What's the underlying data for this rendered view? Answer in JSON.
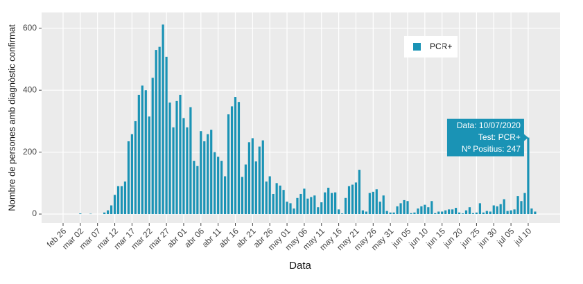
{
  "chart_data": {
    "type": "bar",
    "x_label": "Data",
    "y_label": "Nombre de persones amb diagnòstic confirmat",
    "categories": [
      "feb 26",
      null,
      null,
      null,
      null,
      "mar 02",
      null,
      null,
      null,
      null,
      "mar 07",
      null,
      null,
      null,
      null,
      "mar 12",
      null,
      null,
      null,
      null,
      "mar 17",
      null,
      null,
      null,
      null,
      "mar 22",
      null,
      null,
      null,
      null,
      "mar 27",
      null,
      null,
      null,
      null,
      "abr 01",
      null,
      null,
      null,
      null,
      "abr 06",
      null,
      null,
      null,
      null,
      "abr 11",
      null,
      null,
      null,
      null,
      "abr 16",
      null,
      null,
      null,
      null,
      "abr 21",
      null,
      null,
      null,
      null,
      "abr 26",
      null,
      null,
      null,
      null,
      "may 01",
      null,
      null,
      null,
      null,
      "may 06",
      null,
      null,
      null,
      null,
      "may 11",
      null,
      null,
      null,
      null,
      "may 16",
      null,
      null,
      null,
      null,
      "may 21",
      null,
      null,
      null,
      null,
      "may 26",
      null,
      null,
      null,
      null,
      "may 31",
      null,
      null,
      null,
      null,
      "jun 05",
      null,
      null,
      null,
      null,
      "jun 10",
      null,
      null,
      null,
      null,
      "jun 15",
      null,
      null,
      null,
      null,
      "jun 20",
      null,
      null,
      null,
      null,
      "jun 25",
      null,
      null,
      null,
      null,
      "jun 30",
      null,
      null,
      null,
      null,
      "jul 05",
      null,
      null,
      null,
      null,
      "jul 10",
      null,
      null
    ],
    "series": [
      {
        "name": "PCR+",
        "color": "#1a93b5",
        "values": [
          null,
          null,
          null,
          null,
          null,
          2,
          null,
          null,
          1,
          null,
          null,
          null,
          5,
          12,
          28,
          62,
          90,
          90,
          105,
          235,
          258,
          300,
          385,
          415,
          400,
          315,
          440,
          530,
          540,
          612,
          508,
          360,
          280,
          365,
          385,
          310,
          280,
          345,
          172,
          155,
          268,
          235,
          258,
          272,
          200,
          185,
          172,
          122,
          322,
          348,
          378,
          362,
          120,
          160,
          232,
          245,
          170,
          218,
          238,
          105,
          122,
          65,
          100,
          92,
          78,
          40,
          35,
          18,
          52,
          65,
          82,
          50,
          55,
          60,
          22,
          38,
          70,
          85,
          68,
          70,
          15,
          2,
          52,
          90,
          95,
          102,
          143,
          12,
          8,
          68,
          72,
          80,
          40,
          60,
          10,
          5,
          5,
          25,
          35,
          45,
          42,
          3,
          5,
          18,
          25,
          30,
          22,
          42,
          3,
          8,
          8,
          12,
          15,
          15,
          20,
          5,
          2,
          12,
          22,
          3,
          5,
          35,
          5,
          10,
          8,
          28,
          25,
          32,
          48,
          10,
          12,
          15,
          58,
          42,
          68,
          247,
          18,
          8
        ]
      }
    ],
    "ylim": [
      -29,
      651
    ],
    "yticks": [
      0,
      200,
      400,
      600
    ],
    "grid": true,
    "legend": "top-right",
    "annotations": [
      "Data: 10/07/2020",
      "Test: PCR+",
      "Nº Positius: 247"
    ]
  }
}
